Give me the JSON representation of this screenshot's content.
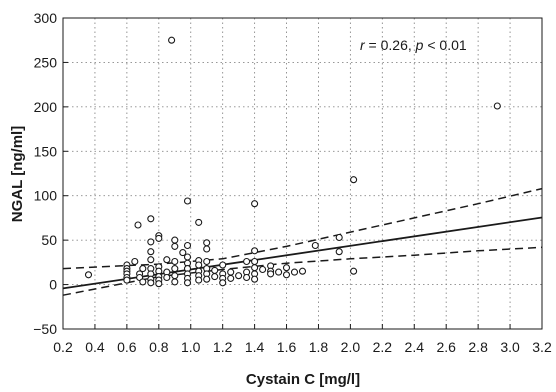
{
  "chart_data": {
    "type": "scatter",
    "title": "",
    "xlabel": "Cystain C [mg/l]",
    "ylabel": "NGAL [ng/ml]",
    "xlim": [
      0.2,
      3.2
    ],
    "ylim": [
      -50,
      300
    ],
    "x_ticks": [
      "0.2",
      "0.4",
      "0.6",
      "0.8",
      "1.0",
      "1.2",
      "1.4",
      "1.6",
      "1.8",
      "2.0",
      "2.2",
      "2.4",
      "2.6",
      "2.8",
      "3.0",
      "3.2"
    ],
    "y_ticks": [
      "300",
      "250",
      "200",
      "150",
      "100",
      "50",
      "0",
      "−50"
    ],
    "x_tick_values": [
      0.2,
      0.4,
      0.6,
      0.8,
      1.0,
      1.2,
      1.4,
      1.6,
      1.8,
      2.0,
      2.2,
      2.4,
      2.6,
      2.8,
      3.0,
      3.2
    ],
    "y_tick_values": [
      300,
      250,
      200,
      150,
      100,
      50,
      0,
      -50
    ],
    "grid": true,
    "annotation": {
      "r_symbol": "r",
      "r_text": " = 0.26, ",
      "p_symbol": "p",
      "p_text": " < 0.01"
    },
    "points": [
      [
        0.36,
        11
      ],
      [
        0.6,
        22
      ],
      [
        0.6,
        18
      ],
      [
        0.6,
        15
      ],
      [
        0.6,
        12
      ],
      [
        0.6,
        8
      ],
      [
        0.6,
        5
      ],
      [
        0.65,
        26
      ],
      [
        0.67,
        67
      ],
      [
        0.68,
        12
      ],
      [
        0.68,
        8
      ],
      [
        0.7,
        3
      ],
      [
        0.7,
        18
      ],
      [
        0.75,
        74
      ],
      [
        0.75,
        48
      ],
      [
        0.75,
        37
      ],
      [
        0.75,
        28
      ],
      [
        0.75,
        18
      ],
      [
        0.75,
        12
      ],
      [
        0.75,
        6
      ],
      [
        0.75,
        2
      ],
      [
        0.8,
        55
      ],
      [
        0.8,
        52
      ],
      [
        0.8,
        20
      ],
      [
        0.8,
        15
      ],
      [
        0.8,
        9
      ],
      [
        0.8,
        5
      ],
      [
        0.8,
        1
      ],
      [
        0.85,
        28
      ],
      [
        0.85,
        14
      ],
      [
        0.85,
        8
      ],
      [
        0.88,
        275
      ],
      [
        0.9,
        50
      ],
      [
        0.9,
        43
      ],
      [
        0.9,
        26
      ],
      [
        0.9,
        18
      ],
      [
        0.9,
        10
      ],
      [
        0.9,
        3
      ],
      [
        0.95,
        36
      ],
      [
        0.98,
        94
      ],
      [
        0.98,
        44
      ],
      [
        0.98,
        31
      ],
      [
        0.98,
        24
      ],
      [
        0.98,
        18
      ],
      [
        0.98,
        12
      ],
      [
        0.98,
        7
      ],
      [
        0.98,
        2
      ],
      [
        1.05,
        70
      ],
      [
        1.05,
        27
      ],
      [
        1.05,
        22
      ],
      [
        1.05,
        15
      ],
      [
        1.05,
        10
      ],
      [
        1.05,
        5
      ],
      [
        1.1,
        47
      ],
      [
        1.1,
        40
      ],
      [
        1.1,
        26
      ],
      [
        1.1,
        18
      ],
      [
        1.1,
        12
      ],
      [
        1.1,
        6
      ],
      [
        1.15,
        16
      ],
      [
        1.15,
        9
      ],
      [
        1.2,
        22
      ],
      [
        1.2,
        12
      ],
      [
        1.2,
        7
      ],
      [
        1.2,
        2
      ],
      [
        1.25,
        14
      ],
      [
        1.25,
        7
      ],
      [
        1.3,
        10
      ],
      [
        1.35,
        26
      ],
      [
        1.35,
        14
      ],
      [
        1.35,
        8
      ],
      [
        1.4,
        91
      ],
      [
        1.4,
        38
      ],
      [
        1.4,
        26
      ],
      [
        1.4,
        19
      ],
      [
        1.4,
        12
      ],
      [
        1.4,
        6
      ],
      [
        1.45,
        17
      ],
      [
        1.5,
        21
      ],
      [
        1.5,
        15
      ],
      [
        1.5,
        12
      ],
      [
        1.55,
        14
      ],
      [
        1.6,
        19
      ],
      [
        1.6,
        11
      ],
      [
        1.65,
        14
      ],
      [
        1.7,
        15
      ],
      [
        1.78,
        44
      ],
      [
        1.93,
        53
      ],
      [
        1.93,
        37
      ],
      [
        2.02,
        118
      ],
      [
        2.02,
        15
      ],
      [
        2.92,
        201
      ]
    ],
    "regression": {
      "intercept": -9.6,
      "slope": 26.6
    },
    "ci_upper": [
      [
        0.2,
        18
      ],
      [
        0.8,
        23
      ],
      [
        1.2,
        29
      ],
      [
        1.6,
        43
      ],
      [
        2.0,
        59
      ],
      [
        2.4,
        75
      ],
      [
        2.8,
        91
      ],
      [
        3.2,
        108
      ]
    ],
    "ci_lower": [
      [
        0.2,
        -12
      ],
      [
        0.8,
        9
      ],
      [
        1.2,
        17
      ],
      [
        1.6,
        24
      ],
      [
        2.0,
        29
      ],
      [
        2.4,
        33
      ],
      [
        2.8,
        38
      ],
      [
        3.2,
        42
      ]
    ]
  }
}
